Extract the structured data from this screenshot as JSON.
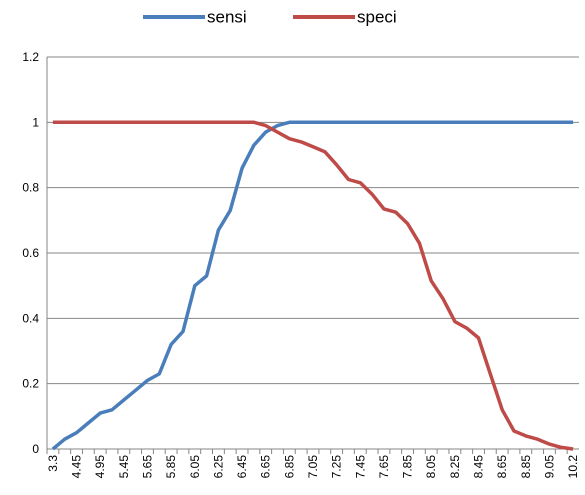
{
  "chart_data": {
    "type": "line",
    "categories": [
      "3.3",
      null,
      "4.45",
      null,
      "4.95",
      null,
      "5.45",
      null,
      "5.65",
      null,
      "5.85",
      null,
      "6.05",
      null,
      "6.25",
      null,
      "6.45",
      null,
      "6.65",
      null,
      "6.85",
      null,
      "7.05",
      null,
      "7.25",
      null,
      "7.45",
      null,
      "7.65",
      null,
      "7.85",
      null,
      "8.05",
      null,
      "8.25",
      null,
      "8.45",
      null,
      "8.65",
      null,
      "8.85",
      null,
      "9.05",
      null,
      "10.2"
    ],
    "series": [
      {
        "name": "sensi",
        "color": "#4a7ebb",
        "values": [
          0,
          0.03,
          0.05,
          0.08,
          0.11,
          0.12,
          0.15,
          0.18,
          0.21,
          0.23,
          0.32,
          0.36,
          0.5,
          0.53,
          0.67,
          0.73,
          0.86,
          0.93,
          0.97,
          0.99,
          1,
          1,
          1,
          1,
          1,
          1,
          1,
          1,
          1,
          1,
          1,
          1,
          1,
          1,
          1,
          1,
          1,
          1,
          1,
          1,
          1,
          1,
          1,
          1,
          1
        ]
      },
      {
        "name": "speci",
        "color": "#be4b48",
        "values": [
          1,
          1,
          1,
          1,
          1,
          1,
          1,
          1,
          1,
          1,
          1,
          1,
          1,
          1,
          1,
          1,
          1,
          1,
          0.99,
          0.97,
          0.95,
          0.94,
          0.925,
          0.91,
          0.87,
          0.825,
          0.815,
          0.78,
          0.735,
          0.725,
          0.69,
          0.63,
          0.515,
          0.46,
          0.39,
          0.37,
          0.34,
          0.23,
          0.12,
          0.055,
          0.04,
          0.03,
          0.015,
          0.005,
          0
        ]
      }
    ],
    "ylim": [
      0,
      1.2
    ],
    "yticks": [
      0,
      0.2,
      0.4,
      0.6,
      0.8,
      1,
      1.2
    ],
    "grid": true,
    "legend": "top"
  }
}
